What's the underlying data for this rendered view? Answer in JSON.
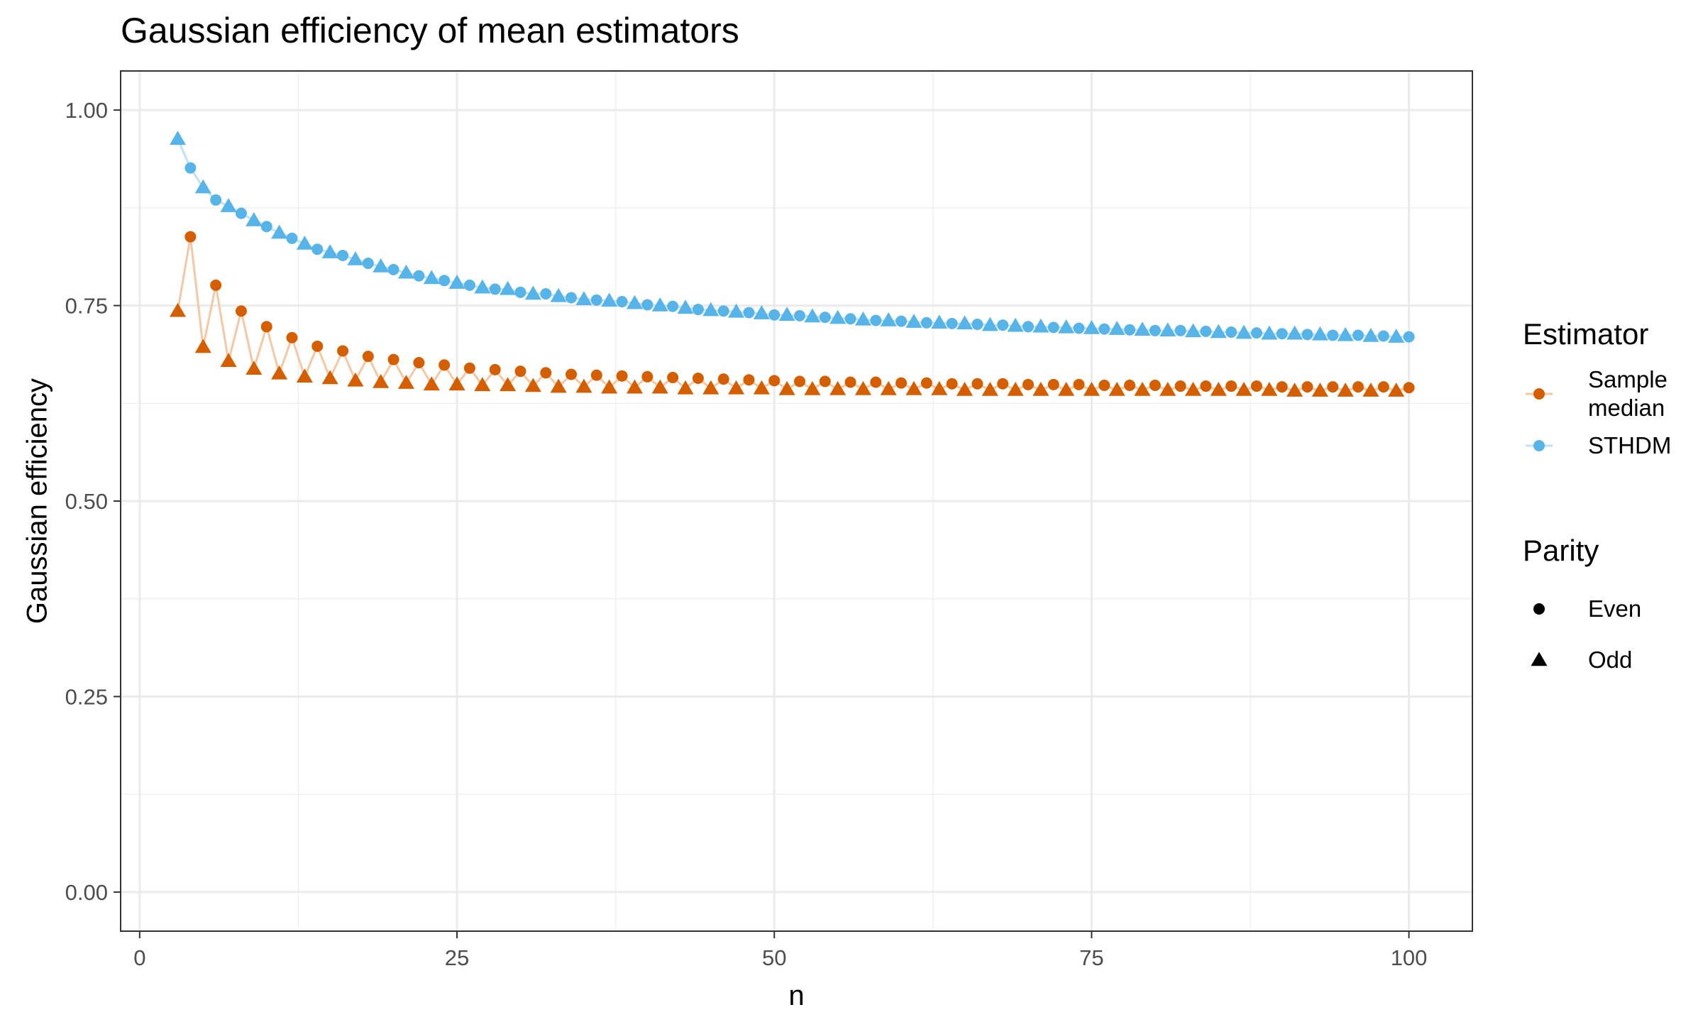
{
  "chart_data": {
    "type": "scatter",
    "title": "Gaussian efficiency of mean estimators",
    "xlabel": "n",
    "ylabel": "Gaussian efficiency",
    "xlim": [
      -1.5,
      105
    ],
    "ylim": [
      -0.05,
      1.05
    ],
    "x_ticks": [
      0,
      25,
      50,
      75,
      100
    ],
    "x_tick_labels": [
      "0",
      "25",
      "50",
      "75",
      "100"
    ],
    "y_ticks": [
      0,
      0.25,
      0.5,
      0.75,
      1.0
    ],
    "y_tick_labels": [
      "0.00",
      "0.25",
      "0.50",
      "0.75",
      "1.00"
    ],
    "grid": true,
    "legend_position": "right",
    "legend": {
      "estimator_title": "Estimator",
      "estimator_items": [
        {
          "label_lines": [
            "Sample",
            "median"
          ],
          "color": "#D55E00",
          "line_color": "#F5C7A3"
        },
        {
          "label_lines": [
            "STHDM"
          ],
          "color": "#56B4E9",
          "line_color": "#BFE2F6"
        }
      ],
      "parity_title": "Parity",
      "parity_items": [
        {
          "label": "Even",
          "shape": "circle"
        },
        {
          "label": "Odd",
          "shape": "triangle"
        }
      ]
    },
    "series": [
      {
        "name": "STHDM",
        "color": "#56B4E9",
        "line_color": "#BFE2F6",
        "x": [
          3,
          4,
          5,
          6,
          7,
          8,
          9,
          10,
          11,
          12,
          13,
          14,
          15,
          16,
          17,
          18,
          19,
          20,
          21,
          22,
          23,
          24,
          25,
          26,
          27,
          28,
          29,
          30,
          31,
          32,
          33,
          34,
          35,
          36,
          37,
          38,
          39,
          40,
          41,
          42,
          43,
          44,
          45,
          46,
          47,
          48,
          49,
          50,
          51,
          52,
          53,
          54,
          55,
          56,
          57,
          58,
          59,
          60,
          61,
          62,
          63,
          64,
          65,
          66,
          67,
          68,
          69,
          70,
          71,
          72,
          73,
          74,
          75,
          76,
          77,
          78,
          79,
          80,
          81,
          82,
          83,
          84,
          85,
          86,
          87,
          88,
          89,
          90,
          91,
          92,
          93,
          94,
          95,
          96,
          97,
          98,
          99,
          100
        ],
        "y": [
          0.963,
          0.926,
          0.901,
          0.885,
          0.877,
          0.868,
          0.859,
          0.851,
          0.843,
          0.836,
          0.829,
          0.822,
          0.818,
          0.814,
          0.809,
          0.804,
          0.8,
          0.796,
          0.792,
          0.788,
          0.785,
          0.782,
          0.779,
          0.776,
          0.773,
          0.771,
          0.771,
          0.767,
          0.765,
          0.765,
          0.762,
          0.76,
          0.758,
          0.757,
          0.756,
          0.755,
          0.753,
          0.751,
          0.75,
          0.749,
          0.747,
          0.745,
          0.744,
          0.743,
          0.742,
          0.741,
          0.74,
          0.738,
          0.738,
          0.737,
          0.736,
          0.735,
          0.734,
          0.733,
          0.732,
          0.731,
          0.731,
          0.73,
          0.729,
          0.728,
          0.728,
          0.727,
          0.727,
          0.726,
          0.725,
          0.725,
          0.724,
          0.723,
          0.723,
          0.722,
          0.722,
          0.721,
          0.721,
          0.72,
          0.72,
          0.719,
          0.719,
          0.718,
          0.718,
          0.718,
          0.717,
          0.717,
          0.716,
          0.716,
          0.715,
          0.715,
          0.714,
          0.714,
          0.714,
          0.713,
          0.713,
          0.712,
          0.712,
          0.712,
          0.711,
          0.711,
          0.71,
          0.71
        ]
      },
      {
        "name": "Sample median",
        "color": "#D55E00",
        "line_color": "#F5C7A3",
        "x": [
          3,
          4,
          5,
          6,
          7,
          8,
          9,
          10,
          11,
          12,
          13,
          14,
          15,
          16,
          17,
          18,
          19,
          20,
          21,
          22,
          23,
          24,
          25,
          26,
          27,
          28,
          29,
          30,
          31,
          32,
          33,
          34,
          35,
          36,
          37,
          38,
          39,
          40,
          41,
          42,
          43,
          44,
          45,
          46,
          47,
          48,
          49,
          50,
          51,
          52,
          53,
          54,
          55,
          56,
          57,
          58,
          59,
          60,
          61,
          62,
          63,
          64,
          65,
          66,
          67,
          68,
          69,
          70,
          71,
          72,
          73,
          74,
          75,
          76,
          77,
          78,
          79,
          80,
          81,
          82,
          83,
          84,
          85,
          86,
          87,
          88,
          89,
          90,
          91,
          92,
          93,
          94,
          95,
          96,
          97,
          98,
          99,
          100
        ],
        "y": [
          0.743,
          0.838,
          0.697,
          0.776,
          0.679,
          0.743,
          0.669,
          0.723,
          0.663,
          0.709,
          0.659,
          0.698,
          0.657,
          0.692,
          0.654,
          0.685,
          0.652,
          0.681,
          0.651,
          0.677,
          0.649,
          0.674,
          0.649,
          0.67,
          0.648,
          0.668,
          0.648,
          0.666,
          0.647,
          0.664,
          0.646,
          0.662,
          0.646,
          0.661,
          0.645,
          0.66,
          0.645,
          0.659,
          0.645,
          0.658,
          0.644,
          0.657,
          0.644,
          0.656,
          0.644,
          0.655,
          0.644,
          0.654,
          0.643,
          0.653,
          0.643,
          0.653,
          0.643,
          0.652,
          0.643,
          0.652,
          0.643,
          0.651,
          0.643,
          0.651,
          0.643,
          0.65,
          0.642,
          0.65,
          0.642,
          0.65,
          0.642,
          0.649,
          0.642,
          0.649,
          0.642,
          0.649,
          0.642,
          0.648,
          0.642,
          0.648,
          0.642,
          0.648,
          0.642,
          0.647,
          0.642,
          0.647,
          0.642,
          0.647,
          0.642,
          0.647,
          0.642,
          0.646,
          0.641,
          0.646,
          0.641,
          0.646,
          0.641,
          0.646,
          0.641,
          0.646,
          0.641,
          0.645
        ]
      }
    ]
  }
}
